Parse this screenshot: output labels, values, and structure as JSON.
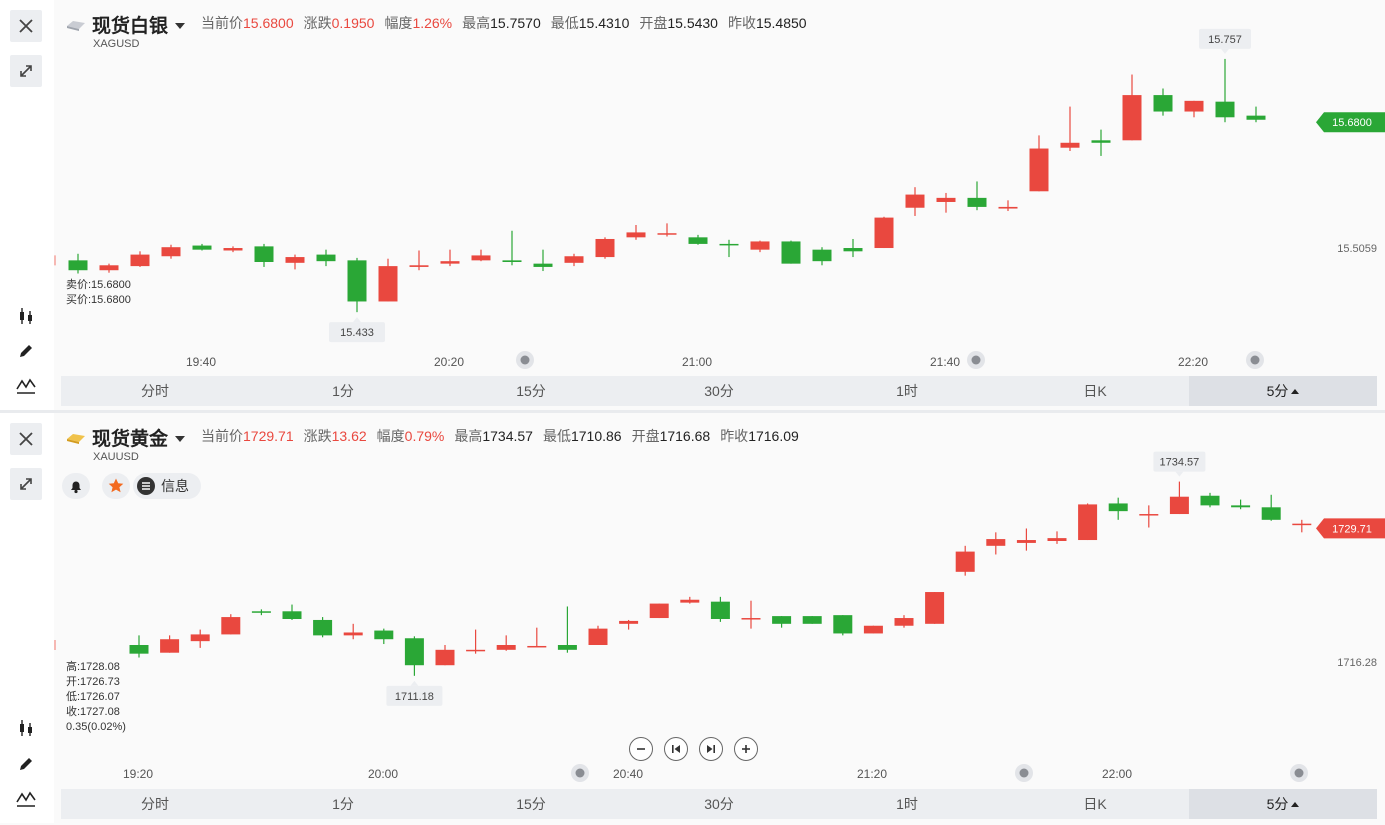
{
  "panels": [
    {
      "name": "现货白银",
      "symbol": "XAGUSD",
      "quote": [
        {
          "label": "当前价",
          "value": "15.6800",
          "color": "up"
        },
        {
          "label": "涨跌",
          "value": "0.1950",
          "color": "up"
        },
        {
          "label": "幅度",
          "value": "1.26%",
          "color": "up"
        },
        {
          "label": "最高",
          "value": "15.7570",
          "color": "normal"
        },
        {
          "label": "最低",
          "value": "15.4310",
          "color": "normal"
        },
        {
          "label": "开盘",
          "value": "15.5430",
          "color": "normal"
        },
        {
          "label": "昨收",
          "value": "15.4850",
          "color": "normal"
        }
      ],
      "bid_ask": [
        "卖价:15.6800",
        "买价:15.6800"
      ],
      "price_tag": "15.6800",
      "ref_price": "15.5059",
      "high_callout": "15.757",
      "low_callout": "15.433",
      "time_labels": [
        "19:40",
        "20:20",
        "21:00",
        "21:40",
        "22:20"
      ],
      "icons": [
        "close-icon",
        "expand-icon",
        "candlestick-icon",
        "pencil-icon",
        "indicator-icon"
      ]
    },
    {
      "name": "现货黄金",
      "symbol": "XAUUSD",
      "quote": [
        {
          "label": "当前价",
          "value": "1729.71",
          "color": "up"
        },
        {
          "label": "涨跌",
          "value": "13.62",
          "color": "up"
        },
        {
          "label": "幅度",
          "value": "0.79%",
          "color": "up"
        },
        {
          "label": "最高",
          "value": "1734.57",
          "color": "normal"
        },
        {
          "label": "最低",
          "value": "1710.86",
          "color": "normal"
        },
        {
          "label": "开盘",
          "value": "1716.68",
          "color": "normal"
        },
        {
          "label": "昨收",
          "value": "1716.09",
          "color": "normal"
        }
      ],
      "ohlc_readout": [
        "高:1728.08",
        "开:1726.73",
        "低:1726.07",
        "收:1727.08",
        "0.35(0.02%)"
      ],
      "info_label": "信息",
      "price_tag": "1729.71",
      "ref_price": "1716.28",
      "high_callout": "1734.57",
      "low_callout": "1711.18",
      "time_labels": [
        "19:20",
        "20:00",
        "20:40",
        "21:20",
        "22:00"
      ],
      "icons": [
        "close-icon",
        "expand-icon",
        "bell-icon",
        "star-icon",
        "info-icon",
        "candlestick-icon",
        "pencil-icon",
        "indicator-icon",
        "zoom-out-icon",
        "step-back-icon",
        "step-forward-icon",
        "zoom-in-icon"
      ]
    }
  ],
  "tabs": [
    "分时",
    "1分",
    "15分",
    "30分",
    "1时",
    "日K",
    "5分"
  ],
  "active_tab": "5分",
  "colors": {
    "up": "#e9483f",
    "down": "#2aa736",
    "tab_bg": "#eceef1"
  },
  "chart_data": [
    {
      "type": "candlestick",
      "symbol": "XAGUSD",
      "interval": "5分",
      "series": [
        {
          "o": 15.512,
          "h": 15.52,
          "l": 15.496,
          "c": 15.5
        },
        {
          "o": 15.5,
          "h": 15.508,
          "l": 15.497,
          "c": 15.506
        },
        {
          "o": 15.505,
          "h": 15.523,
          "l": 15.504,
          "c": 15.519
        },
        {
          "o": 15.517,
          "h": 15.531,
          "l": 15.514,
          "c": 15.528
        },
        {
          "o": 15.53,
          "h": 15.532,
          "l": 15.524,
          "c": 15.525
        },
        {
          "o": 15.524,
          "h": 15.529,
          "l": 15.522,
          "c": 15.527
        },
        {
          "o": 15.529,
          "h": 15.532,
          "l": 15.504,
          "c": 15.51
        },
        {
          "o": 15.509,
          "h": 15.519,
          "l": 15.501,
          "c": 15.516
        },
        {
          "o": 15.519,
          "h": 15.525,
          "l": 15.505,
          "c": 15.511
        },
        {
          "o": 15.512,
          "h": 15.515,
          "l": 15.449,
          "c": 15.462
        },
        {
          "o": 15.462,
          "h": 15.514,
          "l": 15.462,
          "c": 15.505
        },
        {
          "o": 15.504,
          "h": 15.524,
          "l": 15.5,
          "c": 15.506
        },
        {
          "o": 15.508,
          "h": 15.525,
          "l": 15.505,
          "c": 15.511
        },
        {
          "o": 15.512,
          "h": 15.525,
          "l": 15.511,
          "c": 15.518
        },
        {
          "o": 15.512,
          "h": 15.548,
          "l": 15.506,
          "c": 15.51
        },
        {
          "o": 15.508,
          "h": 15.525,
          "l": 15.499,
          "c": 15.504
        },
        {
          "o": 15.509,
          "h": 15.52,
          "l": 15.505,
          "c": 15.517
        },
        {
          "o": 15.516,
          "h": 15.54,
          "l": 15.514,
          "c": 15.538
        },
        {
          "o": 15.54,
          "h": 15.555,
          "l": 15.537,
          "c": 15.546
        },
        {
          "o": 15.545,
          "h": 15.557,
          "l": 15.541,
          "c": 15.545
        },
        {
          "o": 15.54,
          "h": 15.543,
          "l": 15.531,
          "c": 15.532
        },
        {
          "o": 15.532,
          "h": 15.537,
          "l": 15.516,
          "c": 15.531
        },
        {
          "o": 15.525,
          "h": 15.536,
          "l": 15.522,
          "c": 15.535
        },
        {
          "o": 15.535,
          "h": 15.536,
          "l": 15.508,
          "c": 15.508
        },
        {
          "o": 15.525,
          "h": 15.528,
          "l": 15.506,
          "c": 15.511
        },
        {
          "o": 15.527,
          "h": 15.538,
          "l": 15.516,
          "c": 15.523
        },
        {
          "o": 15.527,
          "h": 15.565,
          "l": 15.527,
          "c": 15.564
        },
        {
          "o": 15.576,
          "h": 15.601,
          "l": 15.566,
          "c": 15.592
        },
        {
          "o": 15.583,
          "h": 15.594,
          "l": 15.57,
          "c": 15.588
        },
        {
          "o": 15.588,
          "h": 15.608,
          "l": 15.573,
          "c": 15.577
        },
        {
          "o": 15.575,
          "h": 15.585,
          "l": 15.572,
          "c": 15.577
        },
        {
          "o": 15.596,
          "h": 15.664,
          "l": 15.596,
          "c": 15.648
        },
        {
          "o": 15.649,
          "h": 15.699,
          "l": 15.645,
          "c": 15.655
        },
        {
          "o": 15.658,
          "h": 15.671,
          "l": 15.639,
          "c": 15.655
        },
        {
          "o": 15.658,
          "h": 15.738,
          "l": 15.658,
          "c": 15.713
        },
        {
          "o": 15.713,
          "h": 15.721,
          "l": 15.688,
          "c": 15.693
        },
        {
          "o": 15.693,
          "h": 15.706,
          "l": 15.686,
          "c": 15.706
        },
        {
          "o": 15.705,
          "h": 15.757,
          "l": 15.68,
          "c": 15.686
        },
        {
          "o": 15.688,
          "h": 15.699,
          "l": 15.68,
          "c": 15.683
        }
      ],
      "last": 15.68,
      "ref": 15.5059,
      "x": [
        "19:40",
        "20:20",
        "21:00",
        "21:40",
        "22:20"
      ]
    },
    {
      "type": "candlestick",
      "symbol": "XAUUSD",
      "interval": "5分",
      "series": [
        {
          "o": 1717.6,
          "h": 1718.6,
          "l": 1716.3,
          "c": 1716.7
        },
        {
          "o": 1716.8,
          "h": 1718.6,
          "l": 1716.8,
          "c": 1718.2
        },
        {
          "o": 1718.0,
          "h": 1719.2,
          "l": 1717.3,
          "c": 1718.7
        },
        {
          "o": 1718.7,
          "h": 1720.8,
          "l": 1718.7,
          "c": 1720.5
        },
        {
          "o": 1721.1,
          "h": 1721.3,
          "l": 1720.7,
          "c": 1721.0
        },
        {
          "o": 1721.1,
          "h": 1721.8,
          "l": 1720.2,
          "c": 1720.3
        },
        {
          "o": 1720.2,
          "h": 1720.5,
          "l": 1718.4,
          "c": 1718.6
        },
        {
          "o": 1718.6,
          "h": 1719.8,
          "l": 1718.2,
          "c": 1718.9
        },
        {
          "o": 1719.1,
          "h": 1719.3,
          "l": 1717.7,
          "c": 1718.2
        },
        {
          "o": 1718.3,
          "h": 1718.5,
          "l": 1714.4,
          "c": 1715.5
        },
        {
          "o": 1715.5,
          "h": 1717.6,
          "l": 1715.5,
          "c": 1717.1
        },
        {
          "o": 1717.0,
          "h": 1719.2,
          "l": 1716.7,
          "c": 1717.1
        },
        {
          "o": 1717.1,
          "h": 1718.6,
          "l": 1717.0,
          "c": 1717.6
        },
        {
          "o": 1717.5,
          "h": 1719.4,
          "l": 1717.4,
          "c": 1717.5
        },
        {
          "o": 1717.6,
          "h": 1721.6,
          "l": 1716.8,
          "c": 1717.1
        },
        {
          "o": 1717.6,
          "h": 1719.6,
          "l": 1717.6,
          "c": 1719.3
        },
        {
          "o": 1719.8,
          "h": 1720.2,
          "l": 1719.2,
          "c": 1720.1
        },
        {
          "o": 1720.4,
          "h": 1721.9,
          "l": 1720.4,
          "c": 1721.9
        },
        {
          "o": 1722.0,
          "h": 1722.6,
          "l": 1721.9,
          "c": 1722.3
        },
        {
          "o": 1722.1,
          "h": 1722.6,
          "l": 1720.0,
          "c": 1720.3
        },
        {
          "o": 1720.4,
          "h": 1722.2,
          "l": 1719.3,
          "c": 1720.4
        },
        {
          "o": 1720.6,
          "h": 1720.6,
          "l": 1719.4,
          "c": 1719.8
        },
        {
          "o": 1720.6,
          "h": 1720.6,
          "l": 1719.8,
          "c": 1719.8
        },
        {
          "o": 1720.7,
          "h": 1720.7,
          "l": 1718.6,
          "c": 1718.8
        },
        {
          "o": 1718.8,
          "h": 1719.6,
          "l": 1718.8,
          "c": 1719.6
        },
        {
          "o": 1719.6,
          "h": 1720.7,
          "l": 1719.4,
          "c": 1720.4
        },
        {
          "o": 1719.8,
          "h": 1723.1,
          "l": 1719.8,
          "c": 1723.1
        },
        {
          "o": 1725.2,
          "h": 1727.9,
          "l": 1724.8,
          "c": 1727.3
        },
        {
          "o": 1727.9,
          "h": 1729.3,
          "l": 1727.0,
          "c": 1728.6
        },
        {
          "o": 1728.2,
          "h": 1729.7,
          "l": 1727.4,
          "c": 1728.5
        },
        {
          "o": 1728.4,
          "h": 1729.4,
          "l": 1728.1,
          "c": 1728.7
        },
        {
          "o": 1728.5,
          "h": 1732.3,
          "l": 1728.5,
          "c": 1732.2
        },
        {
          "o": 1732.3,
          "h": 1732.9,
          "l": 1730.6,
          "c": 1731.5
        },
        {
          "o": 1731.2,
          "h": 1732.1,
          "l": 1729.8,
          "c": 1731.2
        },
        {
          "o": 1731.2,
          "h": 1734.57,
          "l": 1731.2,
          "c": 1733.0
        },
        {
          "o": 1733.1,
          "h": 1733.4,
          "l": 1731.9,
          "c": 1732.1
        },
        {
          "o": 1732.1,
          "h": 1732.7,
          "l": 1731.7,
          "c": 1731.9
        },
        {
          "o": 1731.9,
          "h": 1733.2,
          "l": 1730.5,
          "c": 1730.6
        },
        {
          "o": 1730.2,
          "h": 1730.6,
          "l": 1729.3,
          "c": 1730.2
        }
      ],
      "last": 1729.71,
      "ref": 1716.28,
      "x": [
        "19:20",
        "20:00",
        "20:40",
        "21:20",
        "22:00"
      ]
    }
  ]
}
